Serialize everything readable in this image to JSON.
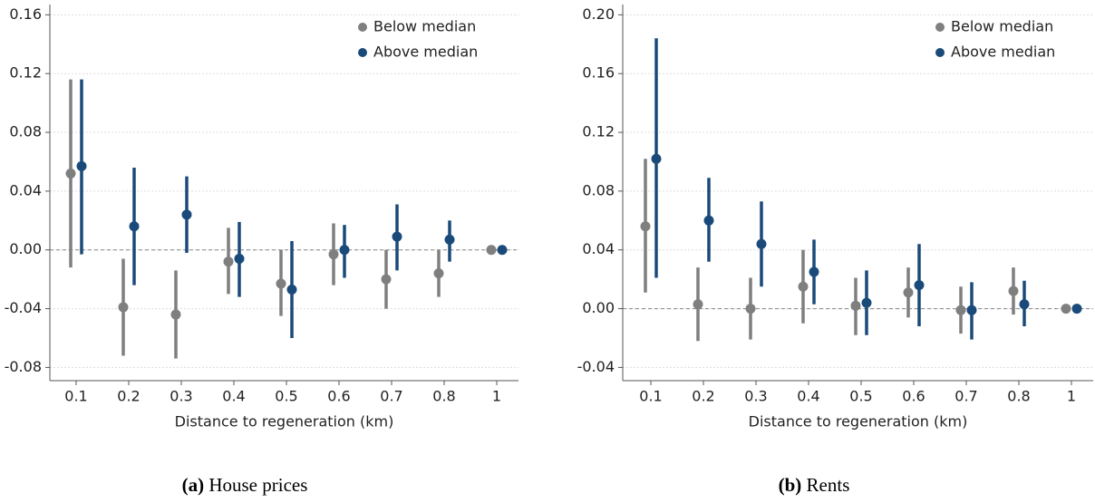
{
  "chart_data": [
    {
      "type": "pointrange",
      "caption_label": "(a)",
      "caption": "House prices",
      "xlabel": "Distance to regeneration (km)",
      "categories": [
        "0.1",
        "0.2",
        "0.3",
        "0.4",
        "0.5",
        "0.6",
        "0.7",
        "0.8",
        "1"
      ],
      "ylim": [
        -0.089,
        0.167
      ],
      "yticks": [
        {
          "value": -0.08,
          "label": "-0.08"
        },
        {
          "value": -0.04,
          "label": "-0.04"
        },
        {
          "value": 0,
          "label": "0.00"
        },
        {
          "value": 0.04,
          "label": "0.04"
        },
        {
          "value": 0.08,
          "label": "0.08"
        },
        {
          "value": 0.12,
          "label": "0.12"
        },
        {
          "value": 0.16,
          "label": "0.16"
        }
      ],
      "grid": true,
      "hline": 0,
      "legend": "top-right",
      "series": [
        {
          "name": "Below median",
          "color": "#7f7f7f",
          "values": [
            0.052,
            -0.039,
            -0.044,
            -0.008,
            -0.023,
            -0.003,
            -0.02,
            -0.016,
            0
          ],
          "lower": [
            -0.012,
            -0.072,
            -0.074,
            -0.03,
            -0.045,
            -0.024,
            -0.04,
            -0.032,
            null
          ],
          "upper": [
            0.116,
            -0.006,
            -0.014,
            0.015,
            0.0,
            0.018,
            0.0,
            0.0,
            null
          ]
        },
        {
          "name": "Above median",
          "color": "#1a4a7a",
          "values": [
            0.057,
            0.016,
            0.024,
            -0.006,
            -0.027,
            0.0,
            0.009,
            0.007,
            0
          ],
          "lower": [
            -0.003,
            -0.024,
            -0.002,
            -0.032,
            -0.06,
            -0.019,
            -0.014,
            -0.008,
            null
          ],
          "upper": [
            0.116,
            0.056,
            0.05,
            0.019,
            0.006,
            0.017,
            0.031,
            0.02,
            null
          ]
        }
      ]
    },
    {
      "type": "pointrange",
      "caption_label": "(b)",
      "caption": "Rents",
      "xlabel": "Distance to regeneration (km)",
      "categories": [
        "0.1",
        "0.2",
        "0.3",
        "0.4",
        "0.5",
        "0.6",
        "0.7",
        "0.8",
        "1"
      ],
      "ylim": [
        -0.049,
        0.207
      ],
      "yticks": [
        {
          "value": -0.04,
          "label": "-0.04"
        },
        {
          "value": 0,
          "label": "0.00"
        },
        {
          "value": 0.04,
          "label": "0.04"
        },
        {
          "value": 0.08,
          "label": "0.08"
        },
        {
          "value": 0.12,
          "label": "0.12"
        },
        {
          "value": 0.16,
          "label": "0.16"
        },
        {
          "value": 0.2,
          "label": "0.20"
        }
      ],
      "grid": true,
      "hline": 0,
      "legend": "top-right",
      "series": [
        {
          "name": "Below median",
          "color": "#7f7f7f",
          "values": [
            0.056,
            0.003,
            0.0,
            0.015,
            0.002,
            0.011,
            -0.001,
            0.012,
            0
          ],
          "lower": [
            0.011,
            -0.022,
            -0.021,
            -0.01,
            -0.018,
            -0.006,
            -0.017,
            -0.004,
            null
          ],
          "upper": [
            0.102,
            0.028,
            0.021,
            0.04,
            0.021,
            0.028,
            0.015,
            0.028,
            null
          ]
        },
        {
          "name": "Above median",
          "color": "#1a4a7a",
          "values": [
            0.102,
            0.06,
            0.044,
            0.025,
            0.004,
            0.016,
            -0.001,
            0.003,
            0
          ],
          "lower": [
            0.021,
            0.032,
            0.015,
            0.003,
            -0.018,
            -0.012,
            -0.021,
            -0.012,
            null
          ],
          "upper": [
            0.184,
            0.089,
            0.073,
            0.047,
            0.026,
            0.044,
            0.018,
            0.019,
            null
          ]
        }
      ]
    }
  ]
}
